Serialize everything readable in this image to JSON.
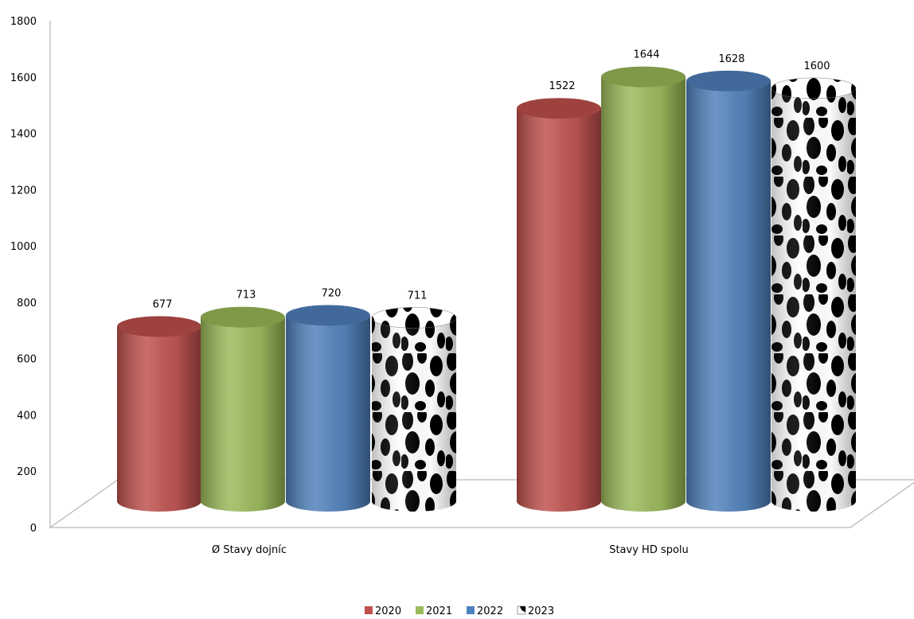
{
  "chart_data": {
    "type": "bar",
    "categories": [
      "Ø Stavy dojníc",
      "Stavy HD spolu"
    ],
    "series": [
      {
        "name": "2020",
        "values": [
          677,
          1522
        ],
        "color": "#c0504d",
        "pattern": "solid"
      },
      {
        "name": "2021",
        "values": [
          713,
          1644
        ],
        "color": "#9bbb59",
        "pattern": "solid"
      },
      {
        "name": "2022",
        "values": [
          720,
          1628
        ],
        "color": "#4f81bd",
        "pattern": "solid"
      },
      {
        "name": "2023",
        "values": [
          711,
          1600
        ],
        "color": "#000000",
        "pattern": "cow-spots"
      }
    ],
    "ylim": [
      0,
      1800
    ],
    "yticks": [
      "0",
      "200",
      "400",
      "600",
      "800",
      "1000",
      "1200",
      "1400",
      "1600",
      "1800"
    ],
    "legend_position": "bottom",
    "style": "3d-cylinder"
  }
}
